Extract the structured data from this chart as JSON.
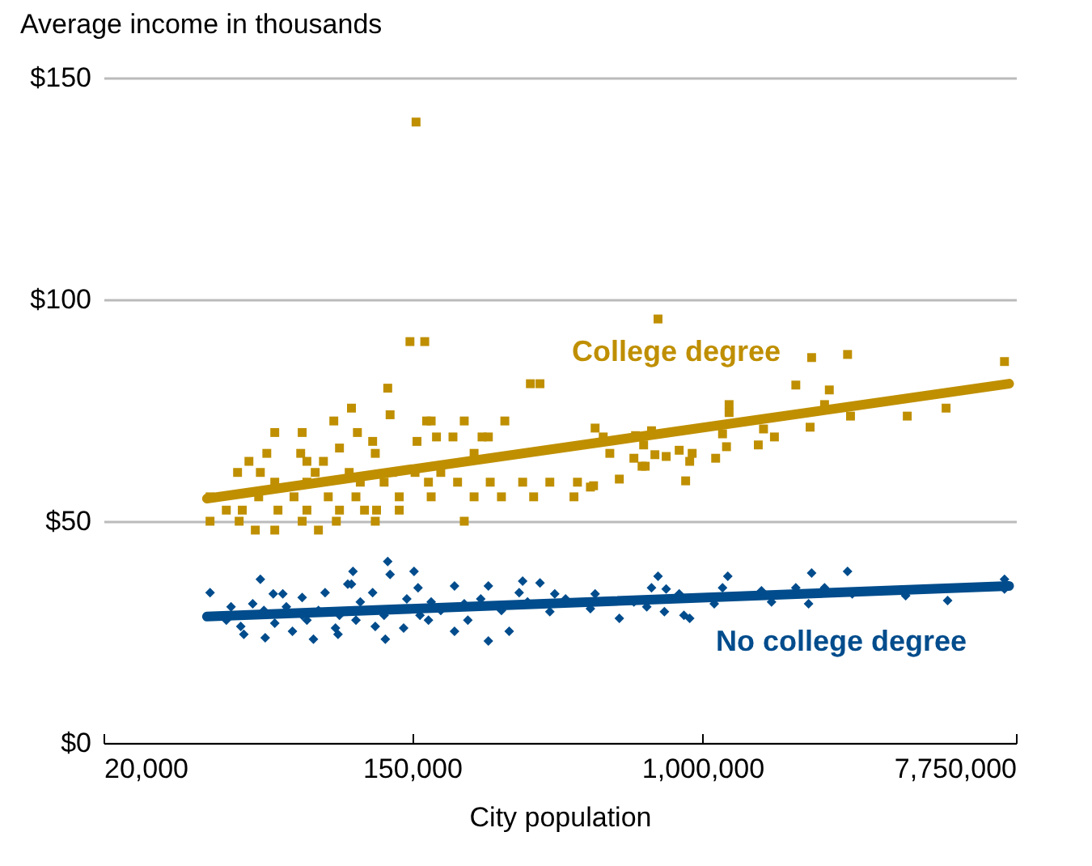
{
  "chart_data": {
    "type": "scatter",
    "xlabel": "City population",
    "ylabel": "Average income in thousands",
    "log": "x",
    "grid": "y",
    "xlim": [
      20000,
      7750000
    ],
    "ylim": [
      0,
      150
    ],
    "xticks": [
      {
        "value": 20000,
        "label": "20,000"
      },
      {
        "value": 150000,
        "label": "150,000"
      },
      {
        "value": 1000000,
        "label": "1,000,000"
      },
      {
        "value": 7750000,
        "label": "7,750,000"
      }
    ],
    "yticks": [
      {
        "value": 0,
        "label": "$0"
      },
      {
        "value": 50,
        "label": "$50"
      },
      {
        "value": 100,
        "label": "$100"
      },
      {
        "value": 150,
        "label": "$150"
      }
    ],
    "series": [
      {
        "name": "College degree",
        "marker": "square",
        "color": "#bf8f00",
        "x": [
          154000,
          148000,
          163000,
          128000,
          325000,
          346000,
          101000,
          130000,
          90000,
          165000,
          170000,
          211000,
          275000,
          61200,
          73200,
          105000,
          176000,
          196000,
          237000,
          247000,
          116000,
          155000,
          58100,
          72500,
          118000,
          93400,
          225000,
          51700,
          84100,
          75500,
          48000,
          55700,
          79700,
          99500,
          132000,
          153000,
          181000,
          61200,
          75500,
          107000,
          125000,
          167000,
          202000,
          250000,
          309000,
          369000,
          442000,
          40100,
          55100,
          69400,
          86800,
          104000,
          138000,
          170000,
          225000,
          269000,
          332000,
          432000,
          44600,
          49500,
          62500,
          75500,
          93400,
          110000,
          119000,
          138000,
          40100,
          48500,
          73200,
          91500,
          118000,
          211000,
          53900,
          61200,
          81400,
          491000,
          748000,
          2040000,
          2580000,
          7190000,
          1840000,
          2290000,
          1190000,
          1190000,
          2220000,
          2630000,
          3810000,
          4910000,
          496000,
          523000,
          646000,
          717000,
          1140000,
          1490000,
          2020000,
          1600000,
          546000,
          639000,
          681000,
          733000,
          789000,
          859000,
          935000,
          920000,
          1090000,
          1170000,
          1440000,
          674000,
          688000,
          481000,
          581000,
          896000
        ],
        "values": [
          140,
          90.5,
          90.5,
          80,
          81,
          81,
          75.5,
          74,
          72.6,
          72.6,
          72.6,
          72.6,
          72.6,
          70,
          70,
          70,
          69,
          69,
          69,
          69,
          68,
          68,
          65.3,
          65.3,
          65.3,
          66.5,
          65.3,
          63.5,
          63.5,
          63.5,
          61,
          61,
          61,
          61,
          61,
          61,
          61,
          58.8,
          58.8,
          58.8,
          58.8,
          58.8,
          58.8,
          58.8,
          58.8,
          58.8,
          58.8,
          55.5,
          55.5,
          55.5,
          55.5,
          55.5,
          55.5,
          55.5,
          55.5,
          55.5,
          55.5,
          55.5,
          52.5,
          52.5,
          52.5,
          52.5,
          52.5,
          52.5,
          52.5,
          52.5,
          50,
          50,
          50,
          50,
          50,
          50,
          48,
          48,
          48,
          58,
          95.6,
          86.9,
          87.6,
          86,
          80.7,
          79.6,
          76.3,
          74.5,
          76.3,
          73.7,
          73.7,
          75.5,
          71,
          69,
          69.3,
          70.4,
          69.7,
          70.8,
          71.2,
          69,
          65.3,
          64.2,
          67.2,
          65,
          64.6,
          66,
          65.3,
          63.5,
          64.2,
          66.8,
          67.2,
          62.4,
          62.4,
          57.7,
          59.5,
          59.1
        ]
      },
      {
        "name": "No college degree",
        "marker": "diamond",
        "color": "#004c8c",
        "x": [
          40100,
          55700,
          60600,
          64500,
          73200,
          85000,
          98600,
          101000,
          102000,
          128000,
          130000,
          116000,
          152000,
          156000,
          198000,
          247000,
          309000,
          346000,
          302000,
          381000,
          409000,
          49000,
          50000,
          57500,
          68700,
          78800,
          75500,
          91000,
          92500,
          61200,
          104000,
          126000,
          118000,
          142000,
          167000,
          198000,
          247000,
          283000,
          216000,
          44600,
          46000,
          53000,
          66000,
          81400,
          93400,
          107000,
          145000,
          170000,
          181000,
          211000,
          235000,
          269000,
          319000,
          369000,
          73200,
          125000,
          57000,
          158000,
          748000,
          1180000,
          2040000,
          2580000,
          717000,
          789000,
          859000,
          1140000,
          1470000,
          1840000,
          2220000,
          7190000,
          7190000,
          496000,
          581000,
          780000,
          886000,
          920000,
          1080000,
          4960000,
          481000,
          639000,
          695000,
          1570000,
          2000000,
          3770000,
          2660000
        ],
        "values": [
          33.9,
          36.9,
          33.6,
          33.6,
          32.8,
          33.9,
          35.8,
          35.8,
          38.7,
          40.9,
          38,
          33.9,
          38.7,
          35,
          35.4,
          35.4,
          36.5,
          36.1,
          33.9,
          33.6,
          32.5,
          26.3,
          24.5,
          23.7,
          25.2,
          23.4,
          27.7,
          25.9,
          24.5,
          27,
          27.7,
          23.4,
          26.3,
          25.9,
          27.7,
          25.2,
          23,
          25.2,
          27.7,
          27.7,
          30.7,
          31.4,
          30.7,
          29.9,
          28.8,
          31.8,
          32.5,
          31.8,
          29.9,
          31.4,
          32.5,
          29.9,
          31.8,
          29.6,
          28.8,
          28.8,
          29.9,
          28.8,
          37.6,
          37.6,
          38.3,
          38.7,
          35,
          34.7,
          33.6,
          35,
          34.3,
          35,
          35,
          36.9,
          34.7,
          33.6,
          28.1,
          29.6,
          28.8,
          28.1,
          31.4,
          32.1,
          30.3,
          31.8,
          30.7,
          31.8,
          31.4,
          33.2,
          33.6
        ]
      },
      {
        "type": "line",
        "color": "#bf8f00",
        "x": [
          39300,
          7410000
        ],
        "values": [
          55.1,
          81
        ]
      },
      {
        "type": "line",
        "color": "#004c8c",
        "x": [
          39300,
          7410000
        ],
        "values": [
          28.5,
          35.4
        ]
      }
    ]
  }
}
